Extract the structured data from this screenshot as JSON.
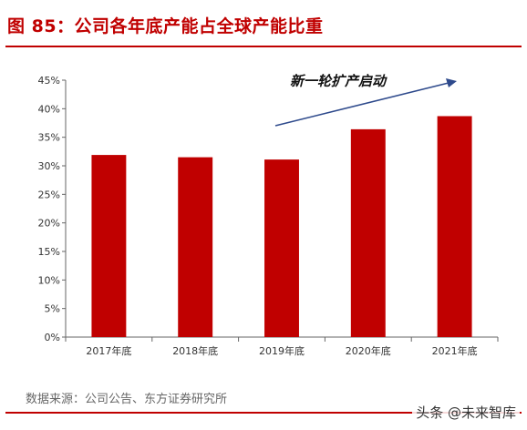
{
  "title": "图 85：公司各年底产能占全球产能比重",
  "source": "数据来源：公司公告、东方证券研究所",
  "watermark": "头条 @未来智库",
  "colors": {
    "brand": "#c00000",
    "bar": "#c00000",
    "arrow": "#2e4a8c",
    "axis": "#666666"
  },
  "chart_data": {
    "type": "bar",
    "categories": [
      "2017年底",
      "2018年底",
      "2019年底",
      "2020年底",
      "2021年底"
    ],
    "values": [
      31.9,
      31.5,
      31.1,
      36.4,
      38.7
    ],
    "ylim": [
      0,
      45
    ],
    "yticks": [
      "0%",
      "5%",
      "10%",
      "15%",
      "20%",
      "25%",
      "30%",
      "35%",
      "40%",
      "45%"
    ],
    "annotation": "新一轮扩产启动",
    "grid": false,
    "legend": "none"
  }
}
